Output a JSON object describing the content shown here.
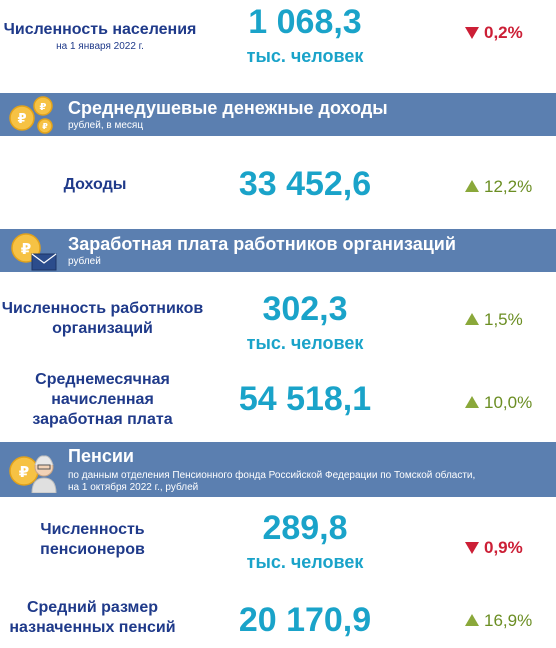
{
  "population": {
    "label": "Численность населения",
    "sublabel": "на 1 января 2022 г.",
    "value": "1 068,3",
    "unit": "тыс. человек",
    "change": "0,2%",
    "direction": "down"
  },
  "income_section": {
    "title": "Среднедушевые денежные доходы",
    "subtitle": "рублей, в месяц",
    "icon": "coins-icon",
    "row": {
      "label": "Доходы",
      "value": "33 452,6",
      "change": "12,2%",
      "direction": "up"
    }
  },
  "salary_section": {
    "title": "Заработная плата работников организаций",
    "subtitle": "рублей",
    "icon": "ruble-coin-envelope-icon",
    "employees": {
      "label_line1": "Численность работников",
      "label_line2": "организаций",
      "value": "302,3",
      "unit": "тыс. человек",
      "change": "1,5%",
      "direction": "up"
    },
    "avg_salary": {
      "label_line1": "Среднемесячная",
      "label_line2": "начисленная",
      "label_line3": "заработная плата",
      "value": "54 518,1",
      "change": "10,0%",
      "direction": "up"
    }
  },
  "pension_section": {
    "title": "Пенсии",
    "subtitle_line1": "по данным отделения Пенсионного фонда Российской Федерации по Томской области,",
    "subtitle_line2": "на 1 октября 2022 г., рублей",
    "icon": "ruble-coin-pensioner-icon",
    "pensioners": {
      "label_line1": "Численность",
      "label_line2": "пенсионеров",
      "value": "289,8",
      "unit": "тыс. человек",
      "change": "0,9%",
      "direction": "down"
    },
    "avg_pension": {
      "label_line1": "Средний размер",
      "label_line2": "назначенных пенсий",
      "value": "20 170,9",
      "change": "16,9%",
      "direction": "up"
    }
  },
  "colors": {
    "bar": "#5b7fb0",
    "label": "#1f3a8a",
    "value": "#1aa3c9",
    "down": "#cc1f36",
    "up": "#8aa83a"
  }
}
